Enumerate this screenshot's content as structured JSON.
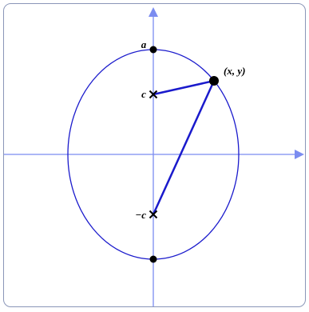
{
  "labels": {
    "vertex": "a",
    "focus_top": "c",
    "focus_bottom": "−c",
    "point": "(x, y)"
  }
}
